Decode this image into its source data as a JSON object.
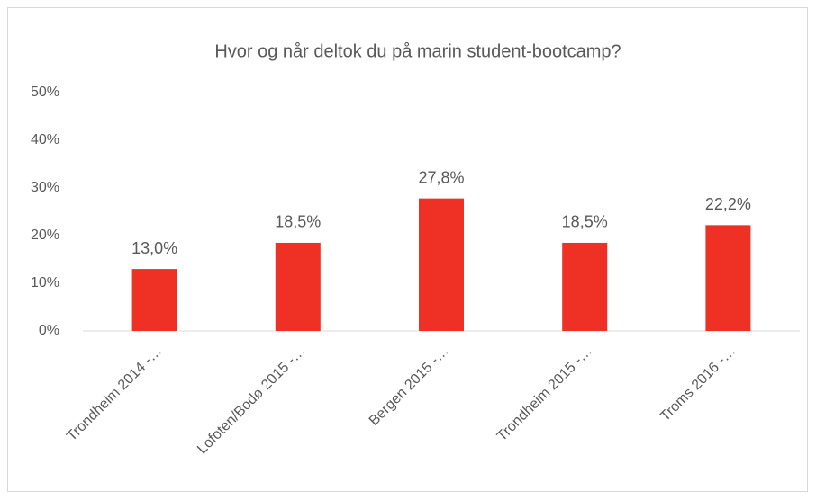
{
  "chart_data": {
    "type": "bar",
    "title": "Hvor og når deltok du på marin student-bootcamp?",
    "categories": [
      "Trondheim 2014 -…",
      "Lofoten/Bodø 2015 -…",
      "Bergen 2015 -…",
      "Trondheim 2015 -…",
      "Troms 2016 -…"
    ],
    "values": [
      13.0,
      18.5,
      27.8,
      18.5,
      22.2
    ],
    "value_labels": [
      "13,0%",
      "18,5%",
      "27,8%",
      "18,5%",
      "22,2%"
    ],
    "color": "#ee3124",
    "ylim": [
      0,
      50
    ],
    "yticks": [
      {
        "value": 0,
        "label": "0%"
      },
      {
        "value": 10,
        "label": "10%"
      },
      {
        "value": 20,
        "label": "20%"
      },
      {
        "value": 30,
        "label": "30%"
      },
      {
        "value": 40,
        "label": "40%"
      },
      {
        "value": 50,
        "label": "50%"
      }
    ],
    "grid": false
  }
}
